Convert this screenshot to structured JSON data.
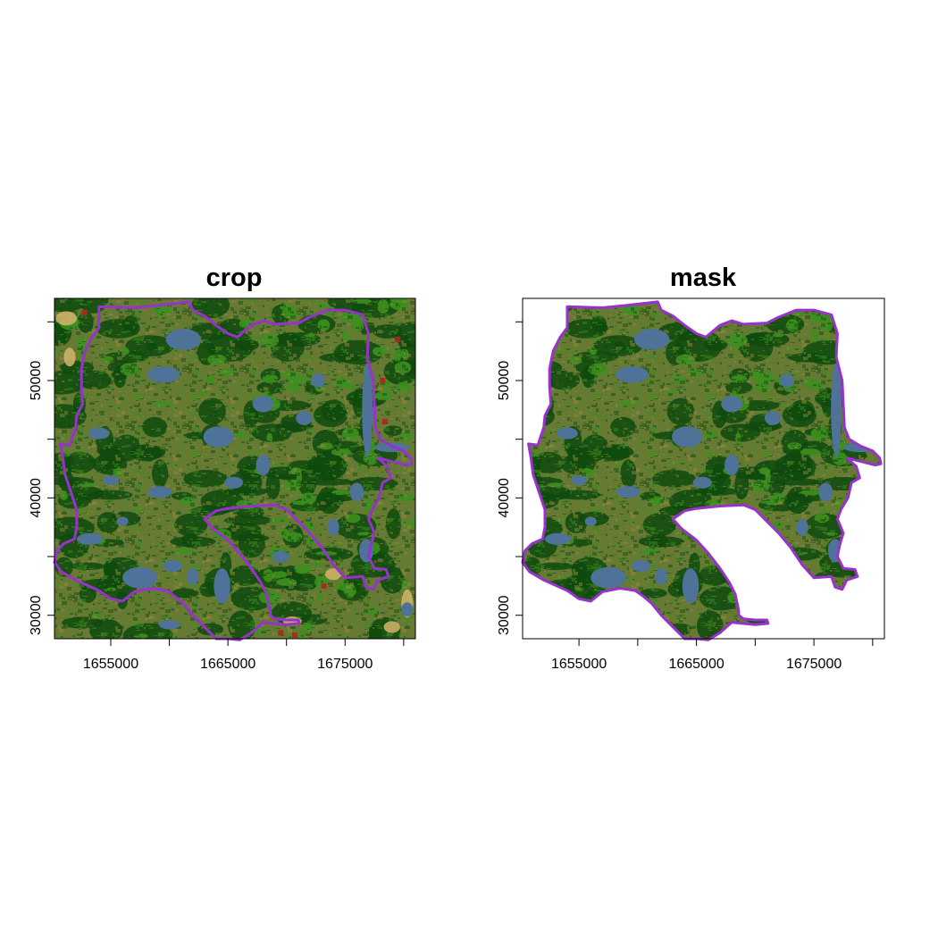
{
  "panels": [
    {
      "title": "crop",
      "x_ticks": [
        {
          "value": 1650000,
          "label": ""
        },
        {
          "value": 1655000,
          "label": "1655000"
        },
        {
          "value": 1660000,
          "label": ""
        },
        {
          "value": 1665000,
          "label": "1665000"
        },
        {
          "value": 1670000,
          "label": ""
        },
        {
          "value": 1675000,
          "label": "1675000"
        },
        {
          "value": 1680000,
          "label": ""
        }
      ],
      "y_ticks": [
        {
          "value": 30000,
          "label": "30000"
        },
        {
          "value": 35000,
          "label": ""
        },
        {
          "value": 40000,
          "label": "40000"
        },
        {
          "value": 45000,
          "label": ""
        },
        {
          "value": 50000,
          "label": "50000"
        },
        {
          "value": 55000,
          "label": ""
        }
      ],
      "masked": false
    },
    {
      "title": "mask",
      "x_ticks": [
        {
          "value": 1650000,
          "label": ""
        },
        {
          "value": 1655000,
          "label": "1655000"
        },
        {
          "value": 1660000,
          "label": ""
        },
        {
          "value": 1665000,
          "label": "1665000"
        },
        {
          "value": 1670000,
          "label": ""
        },
        {
          "value": 1675000,
          "label": "1675000"
        },
        {
          "value": 1680000,
          "label": ""
        }
      ],
      "y_ticks": [
        {
          "value": 30000,
          "label": "30000"
        },
        {
          "value": 35000,
          "label": ""
        },
        {
          "value": 40000,
          "label": "40000"
        },
        {
          "value": 45000,
          "label": ""
        },
        {
          "value": 50000,
          "label": "50000"
        },
        {
          "value": 55000,
          "label": ""
        }
      ],
      "masked": true
    }
  ],
  "extent": {
    "xmin": 1650200,
    "xmax": 1681000,
    "ymin": 28000,
    "ymax": 57000
  },
  "colors": {
    "mixed_forest": "#667a34",
    "conifer_forest": "#0e4a0e",
    "deciduous_forest": "#3d8f1f",
    "water": "#4f7298",
    "shrub": "#9a8a3a",
    "cropland": "#d4b56a",
    "developed": "#b22222",
    "boundary": "#9932cc"
  },
  "boundary": [
    [
      1654000,
      56300
    ],
    [
      1657000,
      56200
    ],
    [
      1659000,
      56400
    ],
    [
      1661700,
      56700
    ],
    [
      1662000,
      56000
    ],
    [
      1663000,
      55500
    ],
    [
      1664000,
      54700
    ],
    [
      1665000,
      54000
    ],
    [
      1665800,
      53700
    ],
    [
      1667000,
      54700
    ],
    [
      1668000,
      55100
    ],
    [
      1669000,
      54800
    ],
    [
      1671000,
      54900
    ],
    [
      1672000,
      55400
    ],
    [
      1673500,
      56000
    ],
    [
      1675000,
      56000
    ],
    [
      1676500,
      55600
    ],
    [
      1677000,
      54000
    ],
    [
      1676900,
      52000
    ],
    [
      1677400,
      50000
    ],
    [
      1677500,
      48000
    ],
    [
      1677600,
      46000
    ],
    [
      1678000,
      45000
    ],
    [
      1679000,
      44400
    ],
    [
      1680000,
      44000
    ],
    [
      1680600,
      43400
    ],
    [
      1680700,
      42900
    ],
    [
      1680200,
      42800
    ],
    [
      1679000,
      43100
    ],
    [
      1677800,
      43400
    ],
    [
      1678600,
      42700
    ],
    [
      1678900,
      41700
    ],
    [
      1678200,
      41300
    ],
    [
      1677900,
      40000
    ],
    [
      1677300,
      39000
    ],
    [
      1677000,
      38200
    ],
    [
      1677500,
      37000
    ],
    [
      1677200,
      36000
    ],
    [
      1677000,
      35000
    ],
    [
      1677500,
      34000
    ],
    [
      1678500,
      33900
    ],
    [
      1678700,
      33300
    ],
    [
      1677800,
      33000
    ],
    [
      1677400,
      32200
    ],
    [
      1676800,
      32400
    ],
    [
      1676500,
      33300
    ],
    [
      1675000,
      33200
    ],
    [
      1674000,
      34300
    ],
    [
      1673000,
      35800
    ],
    [
      1672000,
      37000
    ],
    [
      1671000,
      38000
    ],
    [
      1670000,
      39000
    ],
    [
      1669000,
      39400
    ],
    [
      1667000,
      39300
    ],
    [
      1665000,
      39100
    ],
    [
      1664000,
      38900
    ],
    [
      1663000,
      38200
    ],
    [
      1663700,
      37400
    ],
    [
      1665000,
      36400
    ],
    [
      1666000,
      35300
    ],
    [
      1667000,
      34000
    ],
    [
      1667800,
      32800
    ],
    [
      1668300,
      31800
    ],
    [
      1668600,
      30400
    ],
    [
      1668600,
      30000
    ],
    [
      1669000,
      29700
    ],
    [
      1670000,
      29600
    ],
    [
      1671000,
      29600
    ],
    [
      1671100,
      29300
    ],
    [
      1670000,
      29200
    ],
    [
      1668000,
      29400
    ],
    [
      1667000,
      28500
    ],
    [
      1666000,
      27900
    ],
    [
      1665000,
      28000
    ],
    [
      1664000,
      28000
    ],
    [
      1663000,
      29000
    ],
    [
      1662000,
      30000
    ],
    [
      1661200,
      31000
    ],
    [
      1660500,
      31600
    ],
    [
      1659800,
      32100
    ],
    [
      1658500,
      32300
    ],
    [
      1657000,
      32000
    ],
    [
      1656000,
      31200
    ],
    [
      1655000,
      31400
    ],
    [
      1654000,
      32100
    ],
    [
      1652000,
      33000
    ],
    [
      1650800,
      33700
    ],
    [
      1650200,
      34500
    ],
    [
      1650400,
      35500
    ],
    [
      1651000,
      36100
    ],
    [
      1651900,
      36500
    ],
    [
      1652100,
      37500
    ],
    [
      1652100,
      39000
    ],
    [
      1651600,
      40500
    ],
    [
      1651100,
      42000
    ],
    [
      1650900,
      43500
    ],
    [
      1650700,
      44600
    ],
    [
      1651500,
      44500
    ],
    [
      1652000,
      46000
    ],
    [
      1652100,
      47000
    ],
    [
      1652600,
      48000
    ],
    [
      1652500,
      49500
    ],
    [
      1652500,
      51000
    ],
    [
      1652800,
      52500
    ],
    [
      1653400,
      53700
    ],
    [
      1654000,
      54500
    ],
    [
      1654000,
      56300
    ]
  ],
  "water": [
    {
      "x": 1661200,
      "y": 53500,
      "rx": 1500,
      "ry": 900
    },
    {
      "x": 1659500,
      "y": 50500,
      "rx": 1400,
      "ry": 700
    },
    {
      "x": 1668000,
      "y": 48000,
      "rx": 900,
      "ry": 700
    },
    {
      "x": 1664200,
      "y": 45200,
      "rx": 1300,
      "ry": 900
    },
    {
      "x": 1671500,
      "y": 46800,
      "rx": 700,
      "ry": 600
    },
    {
      "x": 1654000,
      "y": 45500,
      "rx": 900,
      "ry": 500
    },
    {
      "x": 1668000,
      "y": 42800,
      "rx": 600,
      "ry": 900
    },
    {
      "x": 1665500,
      "y": 41300,
      "rx": 800,
      "ry": 500
    },
    {
      "x": 1659200,
      "y": 40500,
      "rx": 1000,
      "ry": 500
    },
    {
      "x": 1655000,
      "y": 41500,
      "rx": 700,
      "ry": 400
    },
    {
      "x": 1653200,
      "y": 36500,
      "rx": 1100,
      "ry": 500
    },
    {
      "x": 1657500,
      "y": 33200,
      "rx": 1500,
      "ry": 900
    },
    {
      "x": 1660300,
      "y": 34200,
      "rx": 800,
      "ry": 500
    },
    {
      "x": 1664500,
      "y": 32500,
      "rx": 700,
      "ry": 1500
    },
    {
      "x": 1662000,
      "y": 33300,
      "rx": 500,
      "ry": 700
    },
    {
      "x": 1676000,
      "y": 40500,
      "rx": 600,
      "ry": 800
    },
    {
      "x": 1676800,
      "y": 35500,
      "rx": 600,
      "ry": 1000
    },
    {
      "x": 1674000,
      "y": 37500,
      "rx": 500,
      "ry": 700
    },
    {
      "x": 1676900,
      "y": 47500,
      "rx": 450,
      "ry": 4000
    },
    {
      "x": 1679000,
      "y": 44300,
      "rx": 1500,
      "ry": 400
    },
    {
      "x": 1672700,
      "y": 50000,
      "rx": 600,
      "ry": 600
    },
    {
      "x": 1656000,
      "y": 38000,
      "rx": 500,
      "ry": 400
    },
    {
      "x": 1669500,
      "y": 35000,
      "rx": 700,
      "ry": 500
    },
    {
      "x": 1660000,
      "y": 29200,
      "rx": 900,
      "ry": 400
    },
    {
      "x": 1680300,
      "y": 30500,
      "rx": 500,
      "ry": 600
    }
  ]
}
